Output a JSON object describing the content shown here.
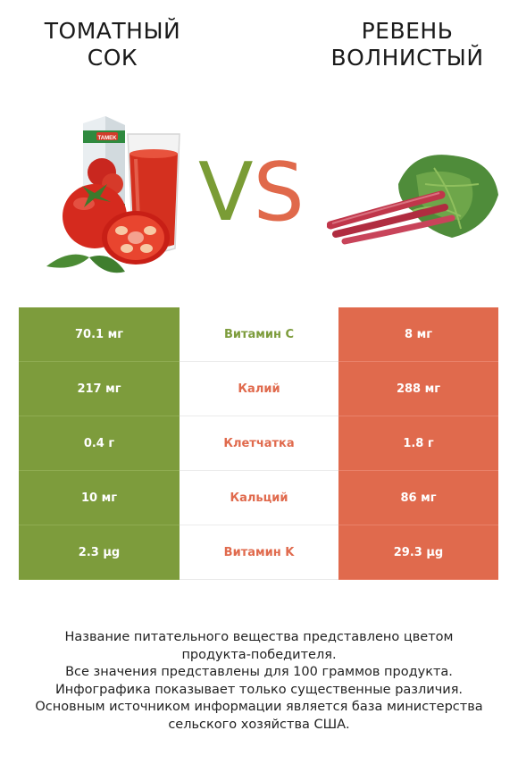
{
  "left_product": {
    "title_line1": "ТОМАТНЫЙ",
    "title_line2": "СОК",
    "color": "#7d9c3c"
  },
  "right_product": {
    "title_line1": "РЕВЕНЬ",
    "title_line2": "ВОЛНИСТЫЙ",
    "color": "#e06a4d"
  },
  "vs": {
    "v": "V",
    "s": "S"
  },
  "juice_box_brand": "TAMEK",
  "rows": [
    {
      "left": "70.1 мг",
      "name": "Витамин C",
      "right": "8 мг",
      "name_color": "#7d9c3c"
    },
    {
      "left": "217 мг",
      "name": "Калий",
      "right": "288 мг",
      "name_color": "#e06a4d"
    },
    {
      "left": "0.4 г",
      "name": "Клетчатка",
      "right": "1.8 г",
      "name_color": "#e06a4d"
    },
    {
      "left": "10 мг",
      "name": "Кальций",
      "right": "86 мг",
      "name_color": "#e06a4d"
    },
    {
      "left": "2.3 µg",
      "name": "Витамин K",
      "right": "29.3 µg",
      "name_color": "#e06a4d"
    }
  ],
  "footer": {
    "line1": "Название питательного вещества представлено цветом",
    "line2": "продукта-победителя.",
    "line3": "Все значения представлены для 100 граммов продукта.",
    "line4": "Инфографика показывает только существенные различия.",
    "line5": "Основным источником информации является база министерства",
    "line6": "сельского хозяйства США."
  }
}
